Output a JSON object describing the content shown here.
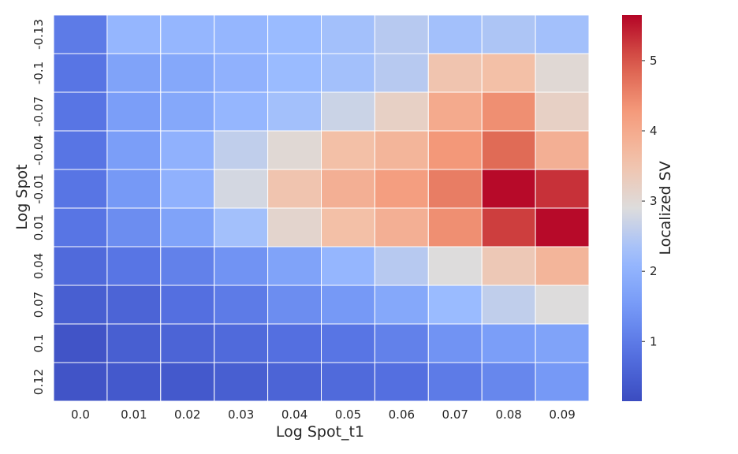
{
  "chart_data": {
    "type": "heatmap",
    "xlabel": "Log Spot_t1",
    "ylabel": "Log Spot",
    "x_categories": [
      "0.0",
      "0.01",
      "0.02",
      "0.03",
      "0.04",
      "0.05",
      "0.06",
      "0.07",
      "0.08",
      "0.09"
    ],
    "y_categories": [
      "-0.13",
      "-0.1",
      "-0.07",
      "-0.04",
      "-0.01",
      "0.01",
      "0.04",
      "0.07",
      "0.1",
      "0.12"
    ],
    "values": [
      [
        1.0,
        2.1,
        2.1,
        2.1,
        2.2,
        2.3,
        2.5,
        2.3,
        2.4,
        2.3
      ],
      [
        0.9,
        1.7,
        1.8,
        2.0,
        2.2,
        2.3,
        2.5,
        3.5,
        3.6,
        3.0
      ],
      [
        0.9,
        1.6,
        1.8,
        2.1,
        2.3,
        2.7,
        3.2,
        4.0,
        4.4,
        3.2
      ],
      [
        0.9,
        1.6,
        2.0,
        2.6,
        3.0,
        3.6,
        3.8,
        4.3,
        4.8,
        3.9
      ],
      [
        0.9,
        1.5,
        2.0,
        2.8,
        3.5,
        3.9,
        4.2,
        4.6,
        5.6,
        5.3
      ],
      [
        0.9,
        1.3,
        1.7,
        2.3,
        3.1,
        3.6,
        3.9,
        4.4,
        5.2,
        5.6
      ],
      [
        0.7,
        0.9,
        1.1,
        1.4,
        1.7,
        2.1,
        2.5,
        2.9,
        3.4,
        3.8
      ],
      [
        0.5,
        0.6,
        0.8,
        1.0,
        1.3,
        1.5,
        1.8,
        2.2,
        2.6,
        2.9
      ],
      [
        0.3,
        0.5,
        0.6,
        0.7,
        0.8,
        0.9,
        1.1,
        1.4,
        1.6,
        1.7
      ],
      [
        0.3,
        0.4,
        0.4,
        0.5,
        0.6,
        0.7,
        0.8,
        1.0,
        1.2,
        1.5
      ]
    ],
    "vmin": 0.15,
    "vmax": 5.65,
    "colormap": "coolwarm",
    "colorbar": {
      "label": "Localized SV",
      "ticks": [
        1,
        2,
        3,
        4,
        5
      ],
      "tick_labels": [
        "1",
        "2",
        "3",
        "4",
        "5"
      ]
    },
    "cell_border_color": "#ffffff",
    "grid": false,
    "legend": "colorbar-right"
  }
}
